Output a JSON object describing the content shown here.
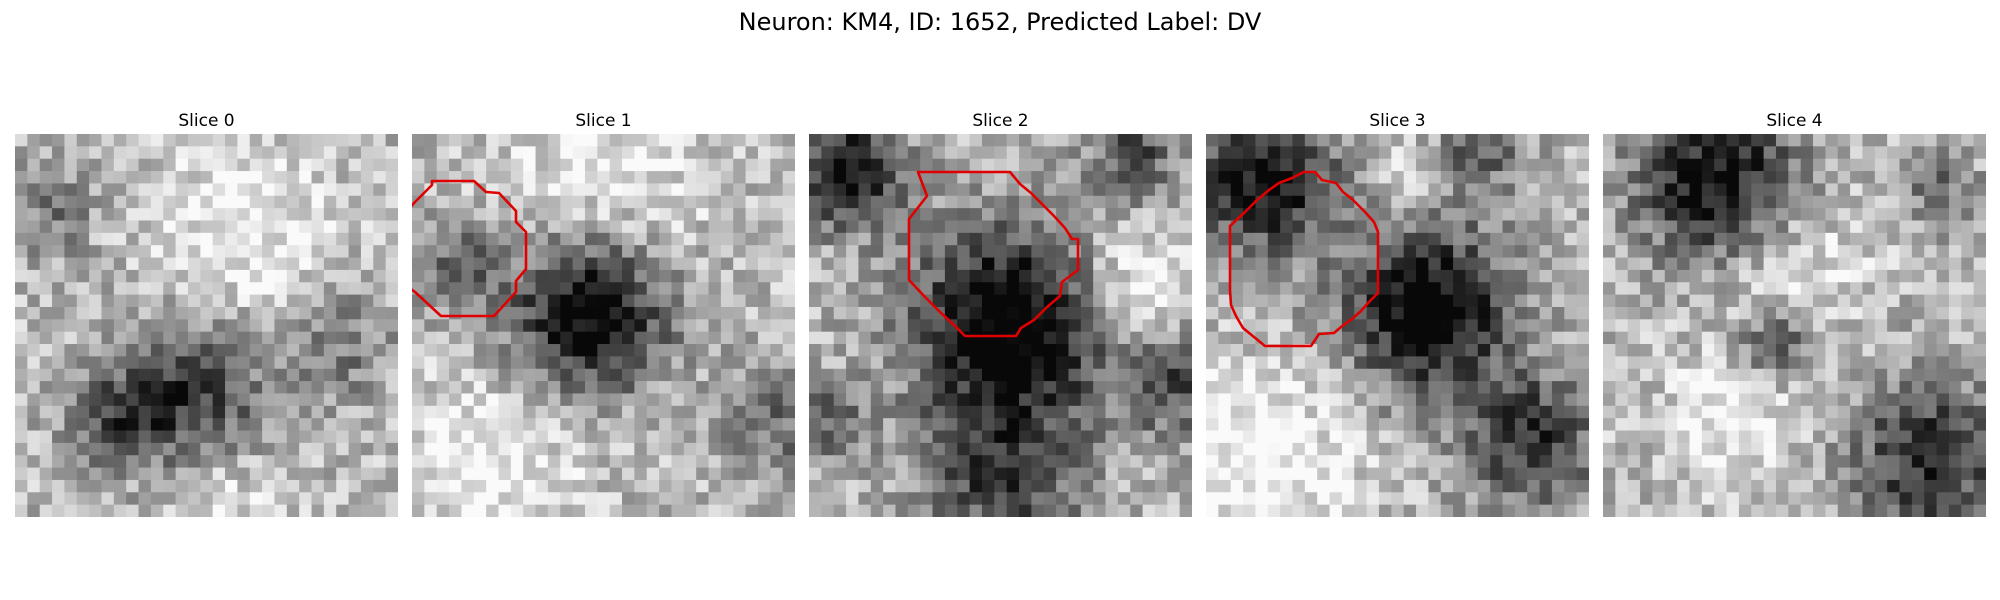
{
  "title": "Neuron: KM4, ID: 1652, Predicted Label: DV",
  "contour_color": "#e00000",
  "slices": [
    {
      "label": "Slice 0",
      "has_contour": false,
      "seed": 11,
      "dark_blobs": [
        [
          0.45,
          0.68,
          0.2,
          0.55
        ],
        [
          0.25,
          0.75,
          0.12,
          0.35
        ],
        [
          0.85,
          0.55,
          0.15,
          0.25
        ],
        [
          0.1,
          0.2,
          0.12,
          0.25
        ]
      ],
      "light_blobs": [
        [
          0.6,
          0.25,
          0.25,
          0.25
        ],
        [
          0.55,
          0.95,
          0.15,
          0.2
        ]
      ]
    },
    {
      "label": "Slice 1",
      "has_contour": true,
      "seed": 22,
      "dark_blobs": [
        [
          0.46,
          0.47,
          0.21,
          0.8
        ],
        [
          0.12,
          0.35,
          0.12,
          0.35
        ],
        [
          0.95,
          0.75,
          0.15,
          0.3
        ]
      ],
      "light_blobs": [
        [
          0.5,
          0.1,
          0.3,
          0.2
        ],
        [
          0.2,
          0.85,
          0.25,
          0.25
        ]
      ]
    },
    {
      "label": "Slice 2",
      "has_contour": true,
      "seed": 33,
      "dark_blobs": [
        [
          0.52,
          0.5,
          0.26,
          0.85
        ],
        [
          0.1,
          0.1,
          0.15,
          0.7
        ],
        [
          0.85,
          0.05,
          0.12,
          0.45
        ],
        [
          0.5,
          0.9,
          0.22,
          0.45
        ],
        [
          0.05,
          0.75,
          0.1,
          0.35
        ],
        [
          0.95,
          0.65,
          0.15,
          0.4
        ]
      ],
      "light_blobs": [
        [
          0.85,
          0.4,
          0.15,
          0.3
        ]
      ]
    },
    {
      "label": "Slice 3",
      "has_contour": true,
      "seed": 44,
      "dark_blobs": [
        [
          0.58,
          0.46,
          0.22,
          0.8
        ],
        [
          0.15,
          0.12,
          0.2,
          0.7
        ],
        [
          0.85,
          0.8,
          0.18,
          0.55
        ],
        [
          0.7,
          0.03,
          0.15,
          0.35
        ]
      ],
      "light_blobs": [
        [
          0.15,
          0.85,
          0.25,
          0.3
        ],
        [
          0.55,
          0.08,
          0.1,
          0.25
        ]
      ]
    },
    {
      "label": "Slice 4",
      "has_contour": false,
      "seed": 55,
      "dark_blobs": [
        [
          0.3,
          0.12,
          0.22,
          0.7
        ],
        [
          0.85,
          0.85,
          0.22,
          0.55
        ],
        [
          0.45,
          0.55,
          0.1,
          0.45
        ],
        [
          0.88,
          0.15,
          0.1,
          0.3
        ]
      ],
      "light_blobs": [
        [
          0.5,
          0.35,
          0.2,
          0.2
        ],
        [
          0.35,
          0.75,
          0.2,
          0.2
        ]
      ]
    }
  ]
}
